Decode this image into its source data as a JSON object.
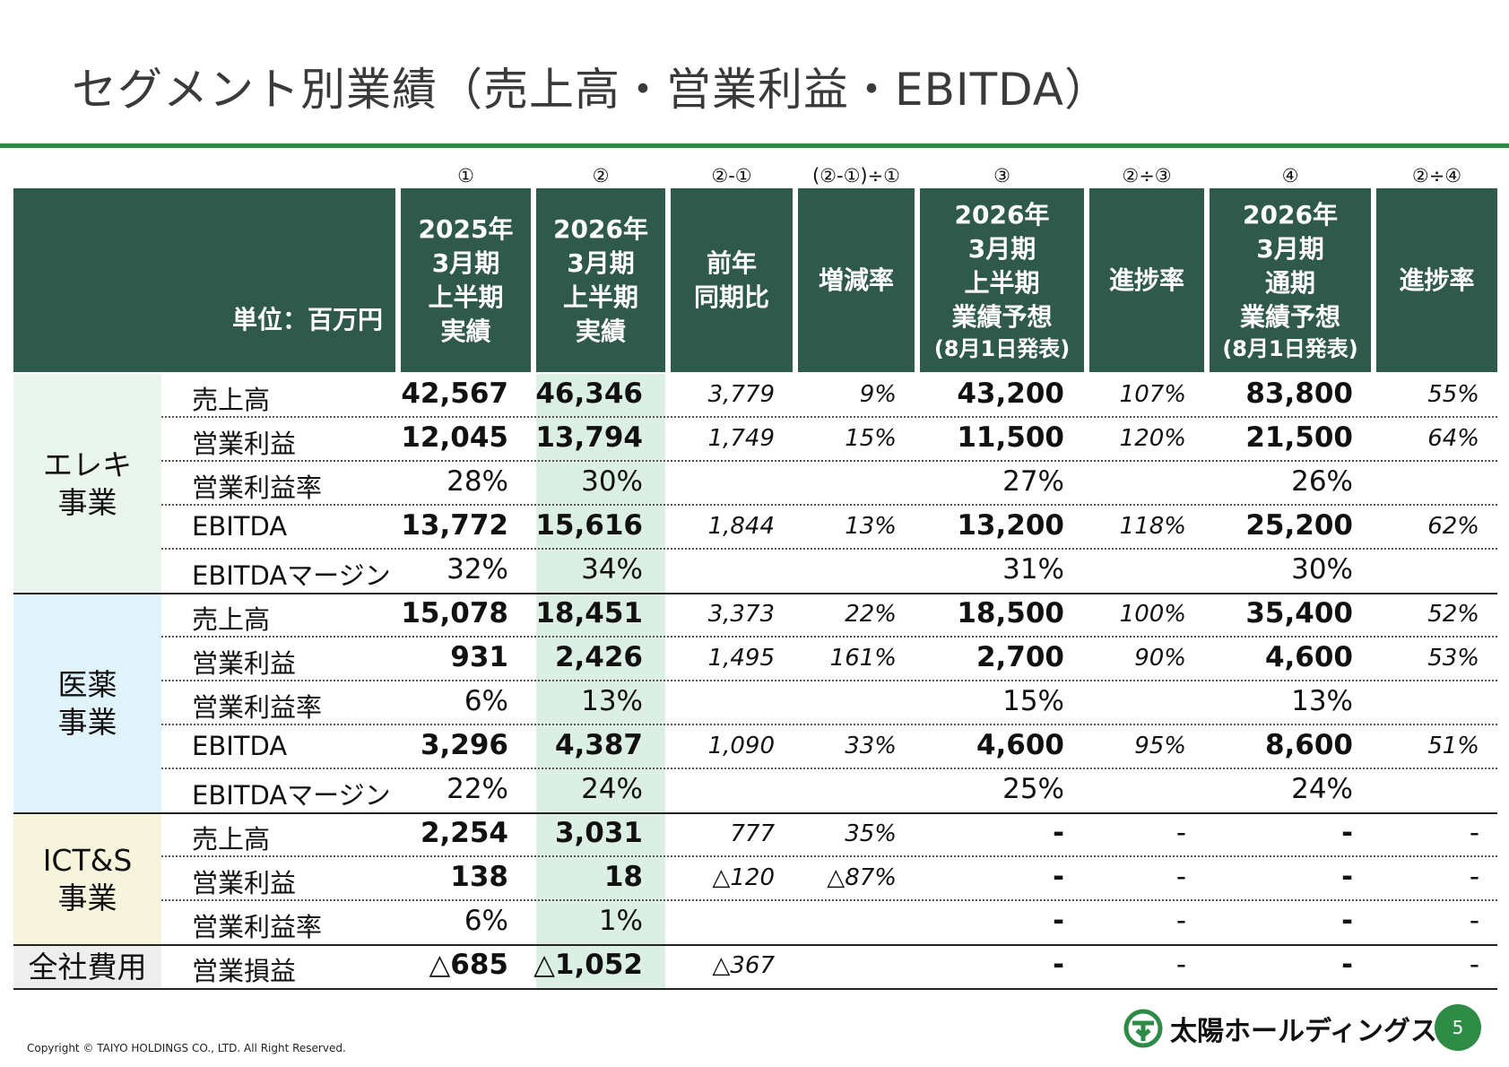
{
  "title": "セグメント別業績（売上高・営業利益・EBITDA）",
  "unit_label": "単位：百万円",
  "column_symbols": [
    "①",
    "②",
    "②-①",
    "(②-①)÷①",
    "③",
    "②÷③",
    "④",
    "②÷④"
  ],
  "headers": {
    "h1": [
      "2025年",
      "3月期",
      "上半期",
      "実績"
    ],
    "h2": [
      "2026年",
      "3月期",
      "上半期",
      "実績"
    ],
    "h3": [
      "前年",
      "同期比"
    ],
    "h4": [
      "増減率"
    ],
    "h5": [
      "2026年",
      "3月期",
      "上半期",
      "業績予想",
      "(8月1日発表)"
    ],
    "h6": [
      "進捗率"
    ],
    "h7": [
      "2026年",
      "3月期",
      "通期",
      "業績予想",
      "(8月1日発表)"
    ],
    "h8": [
      "進捗率"
    ]
  },
  "segments": {
    "elec": "エレキ\n事業",
    "pharma": "医薬\n事業",
    "ict": "ICT&S\n事業",
    "corp": "全社費用"
  },
  "rows": [
    {
      "label": "売上高",
      "v1": "42,567",
      "v2": "46,346",
      "v3": "3,779",
      "v4": "9%",
      "v5": "43,200",
      "v6": "107%",
      "v7": "83,800",
      "v8": "55%"
    },
    {
      "label": "営業利益",
      "v1": "12,045",
      "v2": "13,794",
      "v3": "1,749",
      "v4": "15%",
      "v5": "11,500",
      "v6": "120%",
      "v7": "21,500",
      "v8": "64%"
    },
    {
      "label": "営業利益率",
      "v1": "28%",
      "v2": "30%",
      "v3": "",
      "v4": "",
      "v5": "27%",
      "v6": "",
      "v7": "26%",
      "v8": ""
    },
    {
      "label": "EBITDA",
      "v1": "13,772",
      "v2": "15,616",
      "v3": "1,844",
      "v4": "13%",
      "v5": "13,200",
      "v6": "118%",
      "v7": "25,200",
      "v8": "62%"
    },
    {
      "label": "EBITDAマージン",
      "v1": "32%",
      "v2": "34%",
      "v3": "",
      "v4": "",
      "v5": "31%",
      "v6": "",
      "v7": "30%",
      "v8": ""
    },
    {
      "label": "売上高",
      "v1": "15,078",
      "v2": "18,451",
      "v3": "3,373",
      "v4": "22%",
      "v5": "18,500",
      "v6": "100%",
      "v7": "35,400",
      "v8": "52%"
    },
    {
      "label": "営業利益",
      "v1": "931",
      "v2": "2,426",
      "v3": "1,495",
      "v4": "161%",
      "v5": "2,700",
      "v6": "90%",
      "v7": "4,600",
      "v8": "53%"
    },
    {
      "label": "営業利益率",
      "v1": "6%",
      "v2": "13%",
      "v3": "",
      "v4": "",
      "v5": "15%",
      "v6": "",
      "v7": "13%",
      "v8": ""
    },
    {
      "label": "EBITDA",
      "v1": "3,296",
      "v2": "4,387",
      "v3": "1,090",
      "v4": "33%",
      "v5": "4,600",
      "v6": "95%",
      "v7": "8,600",
      "v8": "51%"
    },
    {
      "label": "EBITDAマージン",
      "v1": "22%",
      "v2": "24%",
      "v3": "",
      "v4": "",
      "v5": "25%",
      "v6": "",
      "v7": "24%",
      "v8": ""
    },
    {
      "label": "売上高",
      "v1": "2,254",
      "v2": "3,031",
      "v3": "777",
      "v4": "35%",
      "v5": "-",
      "v6": "-",
      "v7": "-",
      "v8": "-"
    },
    {
      "label": "営業利益",
      "v1": "138",
      "v2": "18",
      "v3": "△120",
      "v4": "△87%",
      "v5": "-",
      "v6": "-",
      "v7": "-",
      "v8": "-"
    },
    {
      "label": "営業利益率",
      "v1": "6%",
      "v2": "1%",
      "v3": "",
      "v4": "",
      "v5": "-",
      "v6": "-",
      "v7": "-",
      "v8": "-"
    },
    {
      "label": "営業損益",
      "v1": "△685",
      "v2": "△1,052",
      "v3": "△367",
      "v4": "",
      "v5": "-",
      "v6": "-",
      "v7": "-",
      "v8": "-"
    }
  ],
  "colors": {
    "header_bg": "#2f5a4b",
    "rule": "#2e8b45",
    "highlight": "#dcefe5",
    "elec_bg": "#eaf5ee",
    "pharma_bg": "#e1f3fa",
    "ict_bg": "#f6f4dc"
  },
  "logo_text": "太陽ホールディングス",
  "page_number": "5",
  "copyright": "Copyright © TAIYO HOLDINGS CO., LTD.  All Right Reserved."
}
